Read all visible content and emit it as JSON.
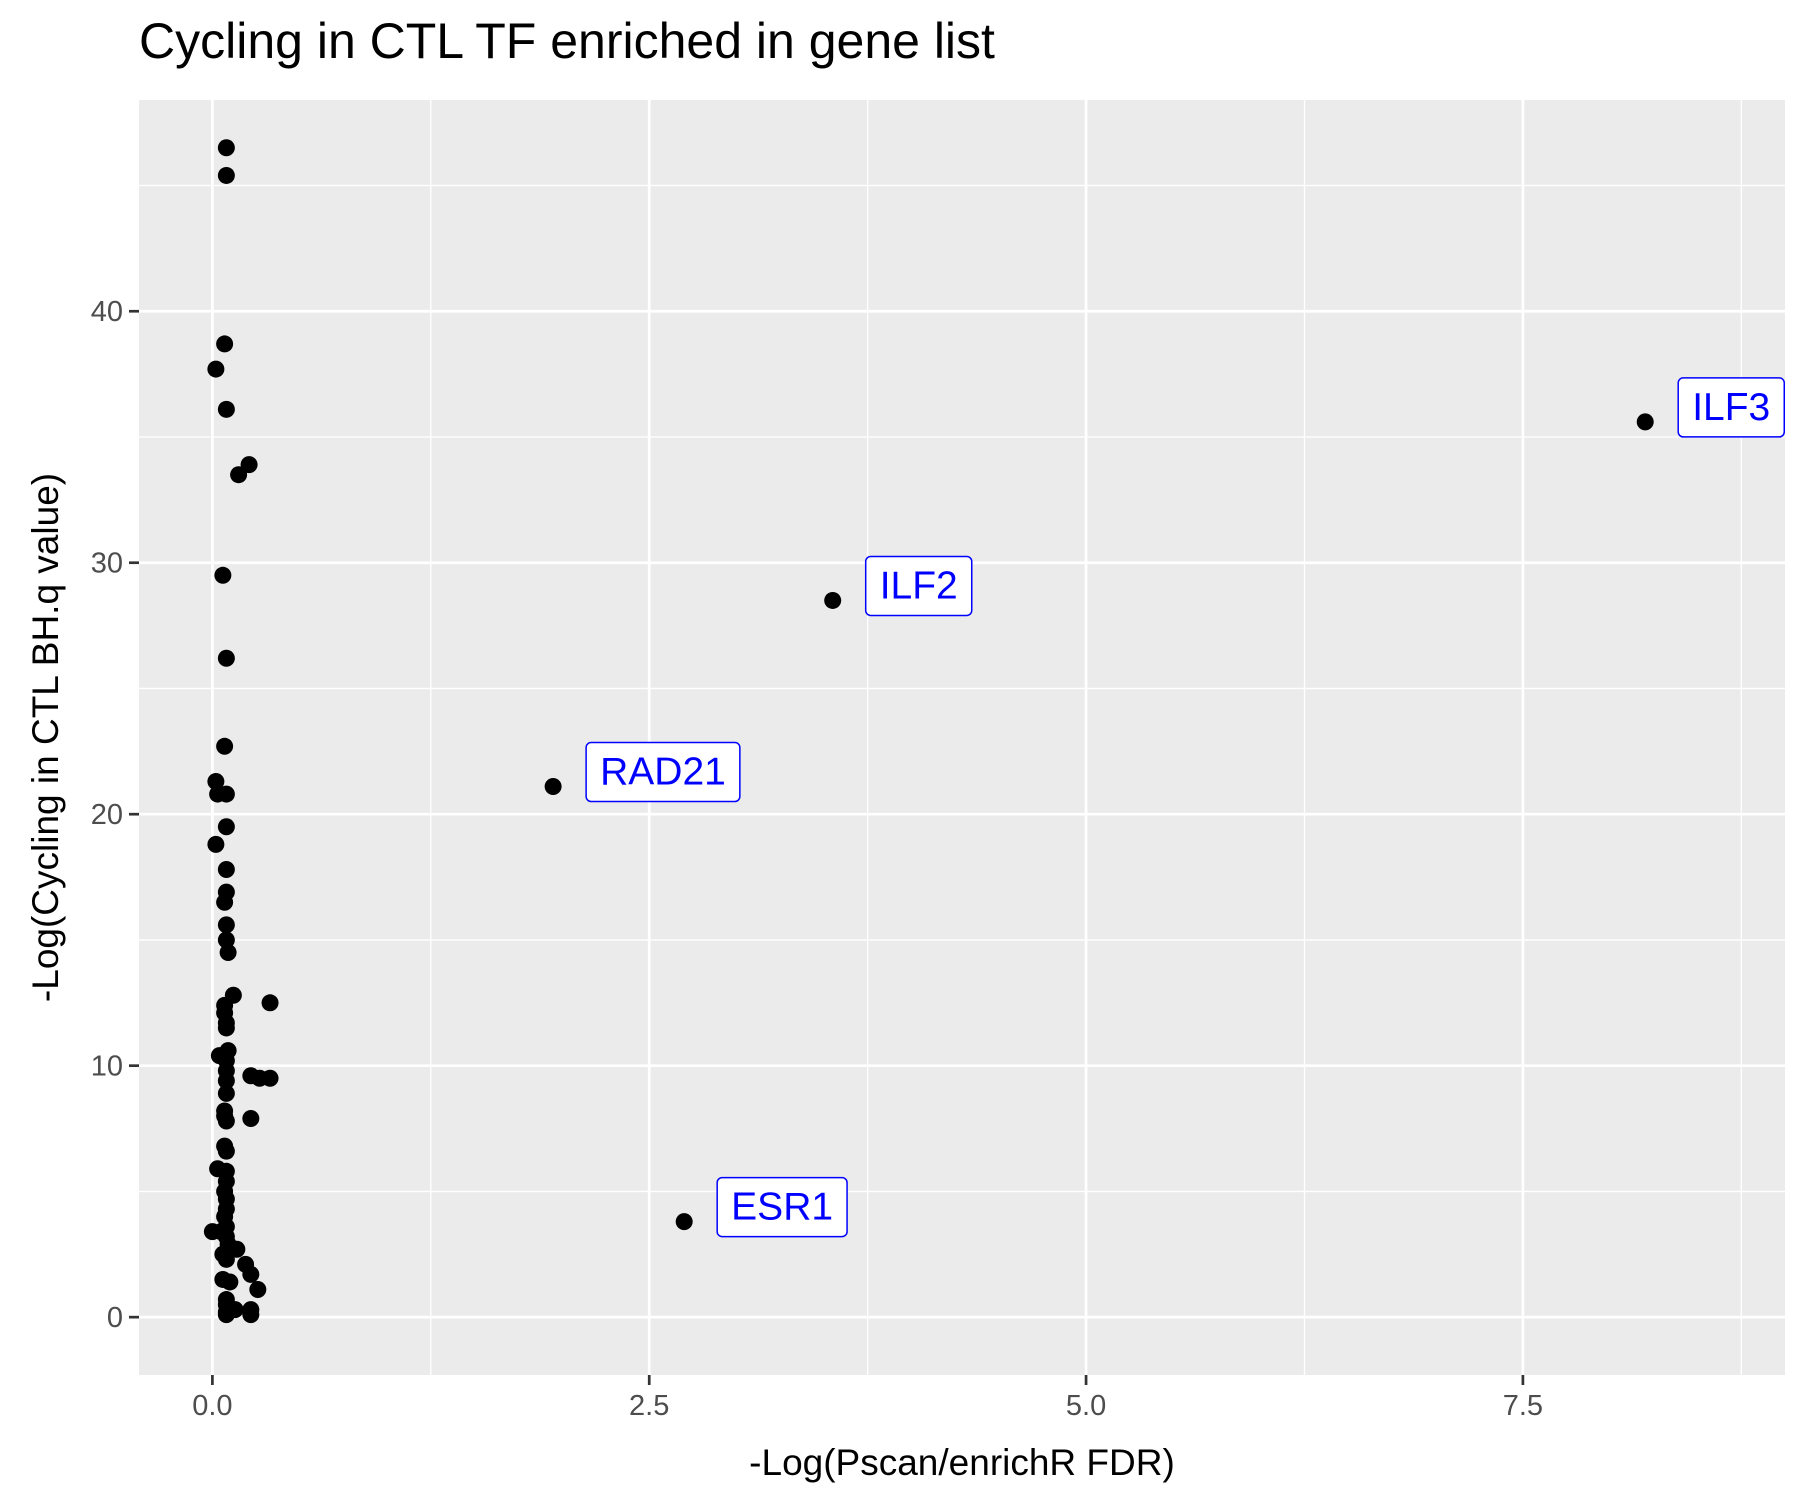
{
  "chart_data": {
    "type": "scatter",
    "title": "Cycling in CTL TF enriched in gene list",
    "xlabel": "-Log(Pscan/enrichR FDR)",
    "ylabel": "-Log(Cycling in CTL BH.q value)",
    "xlim": [
      -0.42,
      9.0
    ],
    "ylim": [
      -2.3,
      48.4
    ],
    "xticks": [
      0.0,
      2.5,
      5.0,
      7.5
    ],
    "xtick_labels": [
      "0.0",
      "2.5",
      "5.0",
      "7.5"
    ],
    "yticks": [
      0,
      10,
      20,
      30,
      40
    ],
    "ytick_labels": [
      "0",
      "10",
      "20",
      "30",
      "40"
    ],
    "grid": true,
    "legend": "none",
    "colors": {
      "panel_background": "#ebebeb",
      "gridline": "#ffffff",
      "point": "#000000",
      "label_text": "#0000ff",
      "label_border": "#0000ff"
    },
    "labeled_points": [
      {
        "label": "ILF3",
        "x": 8.2,
        "y": 35.6
      },
      {
        "label": "ILF2",
        "x": 3.55,
        "y": 28.5
      },
      {
        "label": "RAD21",
        "x": 1.95,
        "y": 21.1
      },
      {
        "label": "ESR1",
        "x": 2.7,
        "y": 3.8
      }
    ],
    "points": [
      {
        "x": 0.08,
        "y": 46.5
      },
      {
        "x": 0.08,
        "y": 45.4
      },
      {
        "x": 0.07,
        "y": 38.7
      },
      {
        "x": 0.02,
        "y": 37.7
      },
      {
        "x": 0.08,
        "y": 36.1
      },
      {
        "x": 0.21,
        "y": 33.9
      },
      {
        "x": 0.15,
        "y": 33.5
      },
      {
        "x": 0.06,
        "y": 29.5
      },
      {
        "x": 0.08,
        "y": 26.2
      },
      {
        "x": 0.07,
        "y": 22.7
      },
      {
        "x": 0.02,
        "y": 21.3
      },
      {
        "x": 0.03,
        "y": 20.8
      },
      {
        "x": 0.08,
        "y": 20.8
      },
      {
        "x": 0.08,
        "y": 19.5
      },
      {
        "x": 0.02,
        "y": 18.8
      },
      {
        "x": 0.08,
        "y": 17.8
      },
      {
        "x": 0.08,
        "y": 16.9
      },
      {
        "x": 0.07,
        "y": 16.5
      },
      {
        "x": 0.08,
        "y": 15.6
      },
      {
        "x": 0.08,
        "y": 15.0
      },
      {
        "x": 0.09,
        "y": 14.5
      },
      {
        "x": 0.12,
        "y": 12.8
      },
      {
        "x": 0.33,
        "y": 12.5
      },
      {
        "x": 0.07,
        "y": 12.4
      },
      {
        "x": 0.07,
        "y": 12.1
      },
      {
        "x": 0.08,
        "y": 11.7
      },
      {
        "x": 0.08,
        "y": 11.5
      },
      {
        "x": 0.09,
        "y": 10.6
      },
      {
        "x": 0.04,
        "y": 10.4
      },
      {
        "x": 0.08,
        "y": 10.2
      },
      {
        "x": 0.08,
        "y": 9.8
      },
      {
        "x": 0.22,
        "y": 9.6
      },
      {
        "x": 0.27,
        "y": 9.5
      },
      {
        "x": 0.33,
        "y": 9.5
      },
      {
        "x": 0.08,
        "y": 9.4
      },
      {
        "x": 0.08,
        "y": 8.9
      },
      {
        "x": 0.07,
        "y": 8.2
      },
      {
        "x": 0.07,
        "y": 8.0
      },
      {
        "x": 0.22,
        "y": 7.9
      },
      {
        "x": 0.08,
        "y": 7.8
      },
      {
        "x": 0.07,
        "y": 6.8
      },
      {
        "x": 0.08,
        "y": 6.6
      },
      {
        "x": 0.03,
        "y": 5.9
      },
      {
        "x": 0.08,
        "y": 5.8
      },
      {
        "x": 0.08,
        "y": 5.4
      },
      {
        "x": 0.07,
        "y": 5.0
      },
      {
        "x": 0.08,
        "y": 4.7
      },
      {
        "x": 0.08,
        "y": 4.3
      },
      {
        "x": 0.07,
        "y": 4.0
      },
      {
        "x": 0.08,
        "y": 3.6
      },
      {
        "x": 0.0,
        "y": 3.4
      },
      {
        "x": 0.05,
        "y": 3.4
      },
      {
        "x": 0.08,
        "y": 3.2
      },
      {
        "x": 0.09,
        "y": 2.9
      },
      {
        "x": 0.14,
        "y": 2.7
      },
      {
        "x": 0.08,
        "y": 2.6
      },
      {
        "x": 0.06,
        "y": 2.5
      },
      {
        "x": 0.08,
        "y": 2.3
      },
      {
        "x": 0.19,
        "y": 2.1
      },
      {
        "x": 0.22,
        "y": 1.7
      },
      {
        "x": 0.06,
        "y": 1.5
      },
      {
        "x": 0.1,
        "y": 1.4
      },
      {
        "x": 0.26,
        "y": 1.1
      },
      {
        "x": 0.08,
        "y": 0.7
      },
      {
        "x": 0.08,
        "y": 0.5
      },
      {
        "x": 0.13,
        "y": 0.3
      },
      {
        "x": 0.08,
        "y": 0.2
      },
      {
        "x": 0.22,
        "y": 0.3
      },
      {
        "x": 0.22,
        "y": 0.1
      },
      {
        "x": 0.08,
        "y": 0.1
      }
    ]
  }
}
